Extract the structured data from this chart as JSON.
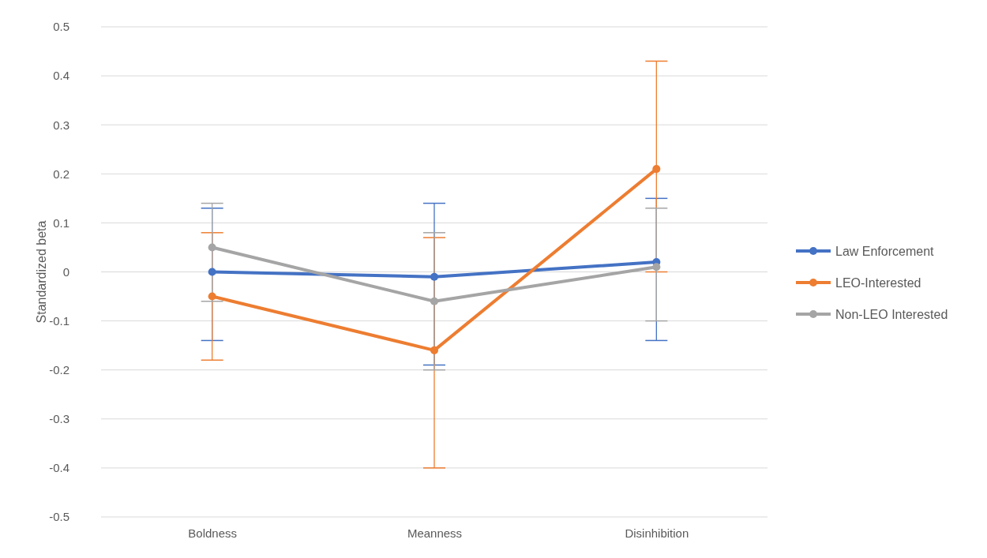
{
  "chart_data": {
    "type": "line",
    "ylabel": "Standardized beta",
    "categories": [
      "Boldness",
      "Meanness",
      "Disinhibition"
    ],
    "series": [
      {
        "name": "Law Enforcement",
        "color": "#4472c4",
        "values": [
          0.0,
          -0.01,
          0.02
        ],
        "errors": [
          [
            -0.14,
            0.13
          ],
          [
            -0.19,
            0.14
          ],
          [
            -0.14,
            0.15
          ]
        ]
      },
      {
        "name": "LEO-Interested",
        "color": "#ed7d31",
        "values": [
          -0.05,
          -0.16,
          0.21
        ],
        "errors": [
          [
            -0.18,
            0.08
          ],
          [
            -0.4,
            0.07
          ],
          [
            0.0,
            0.43
          ]
        ]
      },
      {
        "name": "Non-LEO Interested",
        "color": "#a5a5a5",
        "values": [
          0.05,
          -0.06,
          0.01
        ],
        "errors": [
          [
            -0.06,
            0.14
          ],
          [
            -0.2,
            0.08
          ],
          [
            -0.1,
            0.13
          ]
        ]
      }
    ],
    "ylim": [
      -0.5,
      0.5
    ],
    "yticks": [
      -0.5,
      -0.4,
      -0.3,
      -0.2,
      -0.1,
      0,
      0.1,
      0.2,
      0.3,
      0.4,
      0.5
    ],
    "grid": "y",
    "legend": "right",
    "marker": "circle",
    "line_style": "solid"
  }
}
